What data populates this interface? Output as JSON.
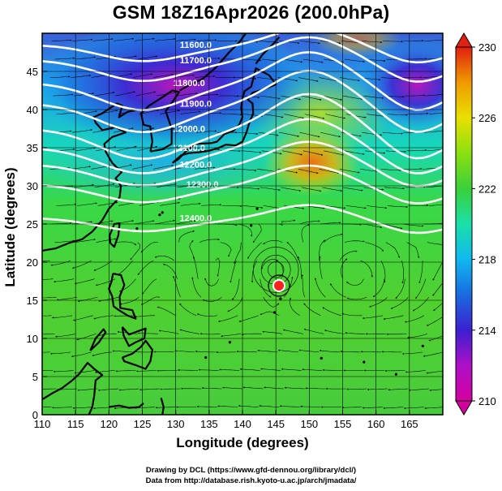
{
  "title": "GSM 18Z16Apr2026 (200.0hPa)",
  "xlabel": "Longitude (degrees)",
  "ylabel": "Latitude (degrees)",
  "credits": [
    "Drawing by DCL (https://www.gfd-dennou.org/library/dcl/)",
    "Data from http://database.rish.kyoto-u.ac.jp/arch/jmadata/"
  ],
  "colorbar": {
    "ticks": [
      "230",
      "226",
      "222",
      "218",
      "214",
      "210"
    ],
    "range": [
      210,
      230
    ]
  },
  "chart_data": {
    "type": "heatmap",
    "title": "GSM 18Z16Apr2026 (200.0hPa)",
    "xlabel": "Longitude (degrees)",
    "ylabel": "Latitude (degrees)",
    "xlim": [
      110,
      170
    ],
    "ylim": [
      0,
      50
    ],
    "xticks": [
      110,
      115,
      120,
      125,
      130,
      135,
      140,
      145,
      150,
      155,
      160,
      165
    ],
    "yticks": [
      0,
      5,
      10,
      15,
      20,
      25,
      30,
      35,
      40,
      45
    ],
    "color_scale": {
      "min": 210,
      "max": 230,
      "colors": [
        "#d4009e",
        "#ae10c8",
        "#3b20d0",
        "#1a6ae0",
        "#10b8f0",
        "#1ae0a8",
        "#3ad03a",
        "#8ae010",
        "#e8e000",
        "#f09a00",
        "#e02010"
      ]
    },
    "field_features": [
      {
        "name": "cold-core-west",
        "lon": 126,
        "lat": 42,
        "value": 212
      },
      {
        "name": "cold-core-east",
        "lon": 165,
        "lat": 44,
        "value": 212
      },
      {
        "name": "warm-ridge",
        "lon": 149,
        "lat": 35,
        "value": 227
      },
      {
        "name": "cyclone-center",
        "lon": 145,
        "lat": 19,
        "value": 224
      }
    ],
    "contours": [
      {
        "label": "11600.0",
        "label_lon": 133,
        "label_lat": 48.5
      },
      {
        "label": "11700.0",
        "label_lon": 133,
        "label_lat": 46.5
      },
      {
        "label": "11800.0",
        "label_lon": 132,
        "label_lat": 43.5
      },
      {
        "label": "11900.0",
        "label_lon": 133,
        "label_lat": 40.8
      },
      {
        "label": "12000.0",
        "label_lon": 132,
        "label_lat": 37.5
      },
      {
        "label": "12100.0",
        "label_lon": 132,
        "label_lat": 35.0
      },
      {
        "label": "12200.0",
        "label_lon": 133,
        "label_lat": 32.8
      },
      {
        "label": "12300.0",
        "label_lon": 134,
        "label_lat": 30.2
      },
      {
        "label": "12400.0",
        "label_lon": 133,
        "label_lat": 25.8
      }
    ]
  }
}
